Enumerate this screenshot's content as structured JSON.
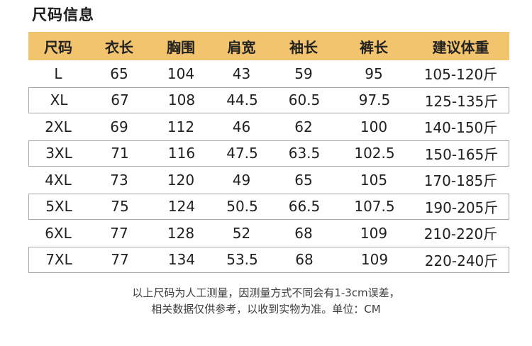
{
  "page": {
    "title": "尺码信息",
    "note_line1": "以上尺码为人工测量，因测量方式不同会有1-3cm误差，",
    "note_line2": "相关数据仅供参考，以收到实物为准。单位：CM"
  },
  "colors": {
    "header_bg": "#F2C46D",
    "title_text": "#1A1A1A",
    "cell_text": "#212121",
    "note_text": "#3C3C3C",
    "row_border": "#A6A6A6",
    "page_bg": "#FEFEFE"
  },
  "chart_data": {
    "type": "table",
    "title": "尺码信息",
    "unit_label": "单位：CM",
    "headers": [
      "尺码",
      "衣长",
      "胸围",
      "肩宽",
      "袖长",
      "裤长",
      "建议体重"
    ],
    "rows": [
      [
        "L",
        "65",
        "104",
        "43",
        "59",
        "95",
        "105-120斤"
      ],
      [
        "XL",
        "67",
        "108",
        "44.5",
        "60.5",
        "97.5",
        "125-135斤"
      ],
      [
        "2XL",
        "69",
        "112",
        "46",
        "62",
        "100",
        "140-150斤"
      ],
      [
        "3XL",
        "71",
        "116",
        "47.5",
        "63.5",
        "102.5",
        "150-165斤"
      ],
      [
        "4XL",
        "73",
        "120",
        "49",
        "65",
        "105",
        "170-185斤"
      ],
      [
        "5XL",
        "75",
        "124",
        "50.5",
        "66.5",
        "107.5",
        "190-205斤"
      ],
      [
        "6XL",
        "77",
        "128",
        "52",
        "68",
        "109",
        "210-220斤"
      ],
      [
        "7XL",
        "77",
        "134",
        "53.5",
        "68",
        "109",
        "220-240斤"
      ]
    ]
  }
}
